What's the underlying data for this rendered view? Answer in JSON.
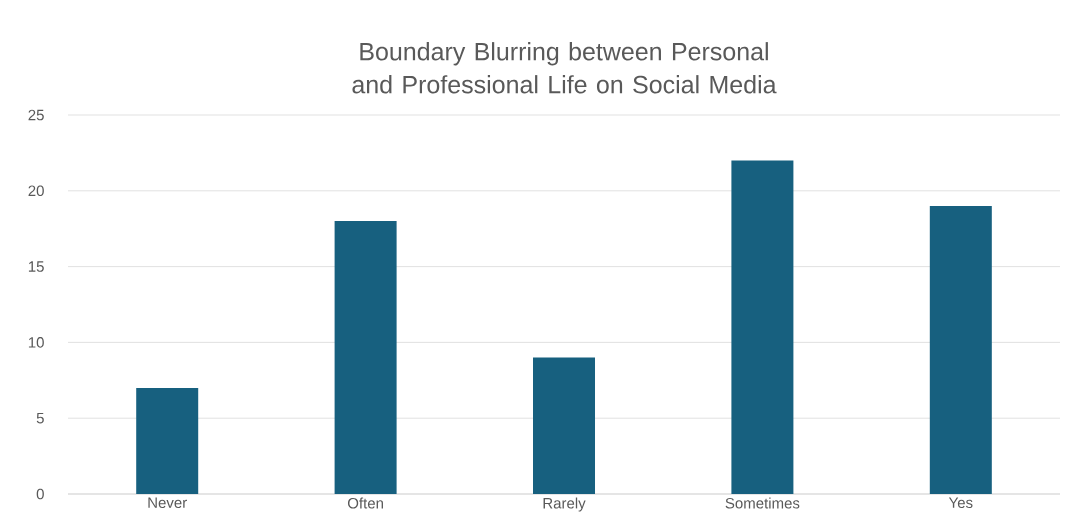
{
  "chart_data": {
    "type": "bar",
    "title": "Boundary Blurring between Personal and Professional Life on Social Media",
    "categories": [
      "Never",
      "Often",
      "Rarely",
      "Sometimes",
      "Yes"
    ],
    "values": [
      7,
      18,
      9,
      22,
      19
    ],
    "color": "#17607f",
    "ylim": [
      0,
      25
    ],
    "yticks": [
      0,
      5,
      10,
      15,
      20,
      25
    ],
    "grid": "y"
  }
}
